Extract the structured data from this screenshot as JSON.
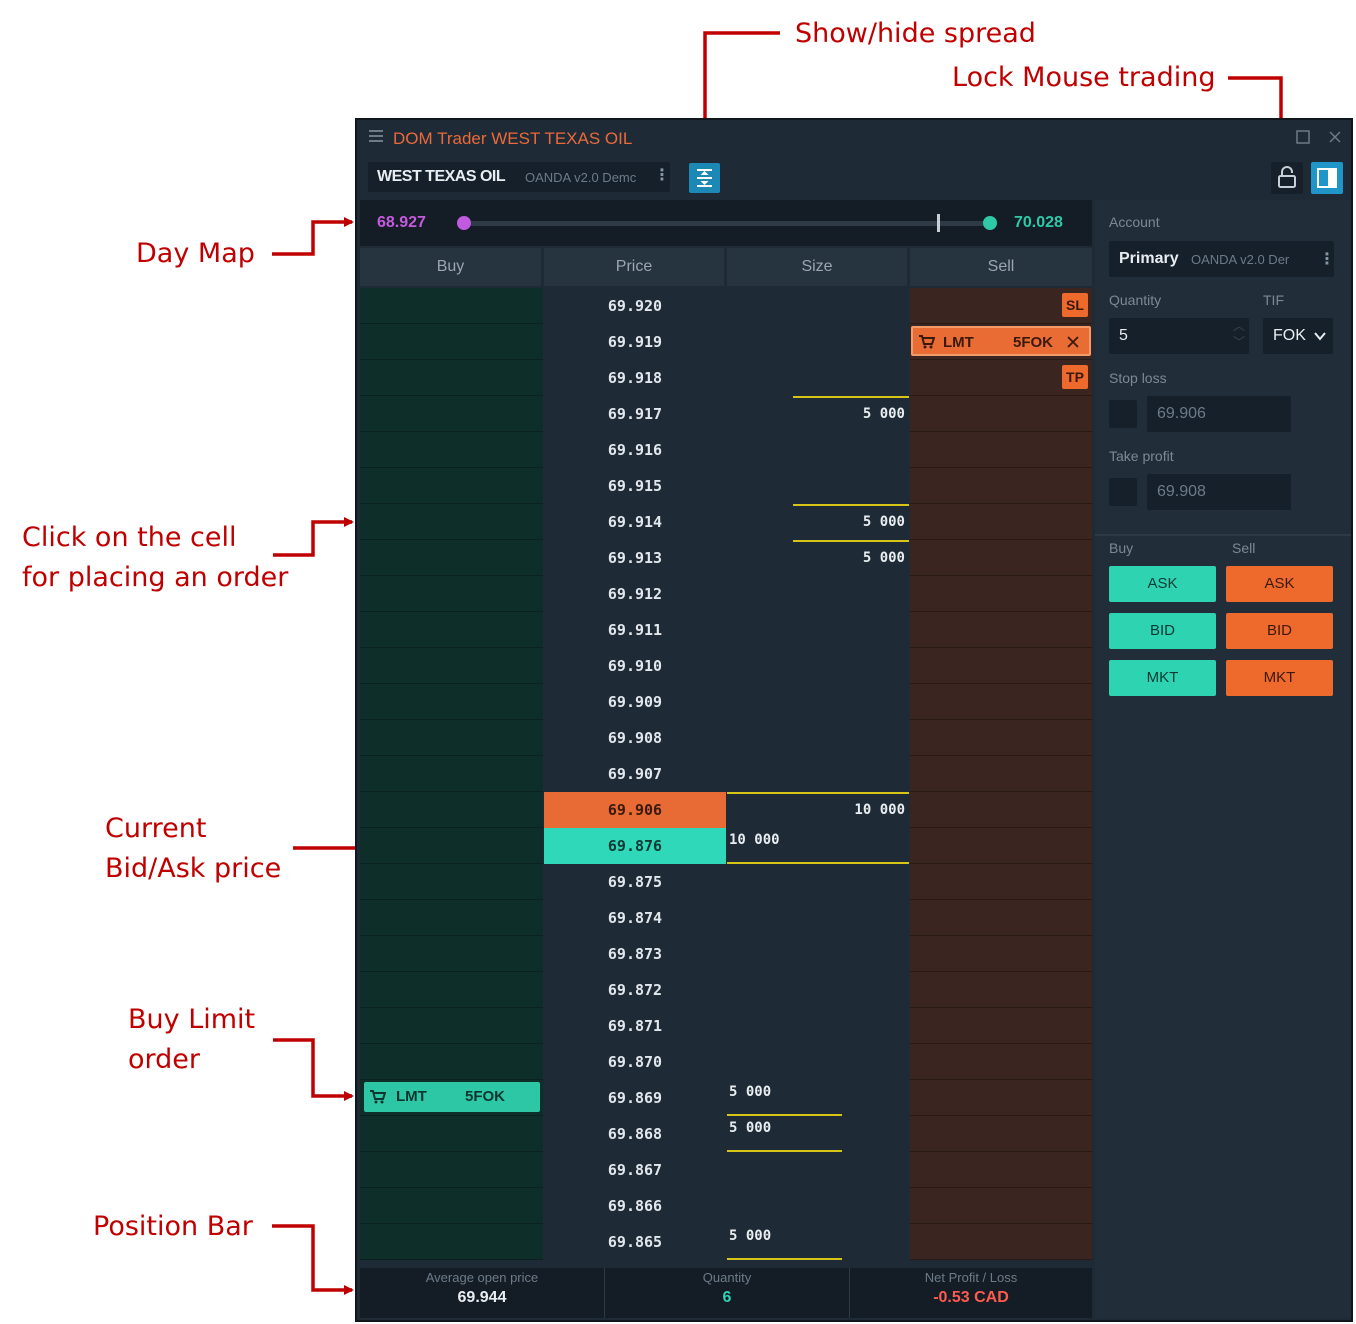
{
  "annotations": {
    "show_hide_spread": "Show/hide spread",
    "lock_mouse": "Lock Mouse trading",
    "day_map": "Day Map",
    "click_cell_1": "Click on the cell",
    "click_cell_2": "for placing an order",
    "current_price_1": "Current",
    "current_price_2": "Bid/Ask price",
    "buy_limit_1": "Buy Limit",
    "buy_limit_2": "order",
    "position_bar": "Position Bar"
  },
  "window": {
    "title": "DOM Trader WEST TEXAS OIL",
    "symbol": "WEST TEXAS OIL",
    "connection": "OANDA v2.0 Demc",
    "accent": "#ea6a3b"
  },
  "day_map": {
    "low": "68.927",
    "high": "70.028",
    "low_color": "#c05be0",
    "high_color": "#2ec9a6"
  },
  "columns": [
    "Buy",
    "Price",
    "Size",
    "Sell"
  ],
  "prices": [
    "69.920",
    "69.919",
    "69.918",
    "69.917",
    "69.916",
    "69.915",
    "69.914",
    "69.913",
    "69.912",
    "69.911",
    "69.910",
    "69.909",
    "69.908",
    "69.907",
    "69.906",
    "69.876",
    "69.875",
    "69.874",
    "69.873",
    "69.872",
    "69.871",
    "69.870",
    "69.869",
    "69.868",
    "69.867",
    "69.866",
    "69.865"
  ],
  "best_ask": "69.906",
  "best_bid": "69.876",
  "sizes": {
    "r3": "5 000",
    "r6": "5 000",
    "r7": "5 000",
    "ask": "10 000",
    "bid": "10 000",
    "r22": "5 000",
    "r23": "5 000",
    "r26": "5 000"
  },
  "sell_tags": {
    "sl": "SL",
    "tp": "TP"
  },
  "sell_order": {
    "type": "LMT",
    "qty": "5FOK",
    "price": "69.919"
  },
  "buy_order": {
    "type": "LMT",
    "qty": "5FOK",
    "price": "69.869"
  },
  "position": {
    "avg_label": "Average open price",
    "avg_value": "69.944",
    "qty_label": "Quantity",
    "qty_value": "6",
    "pnl_label": "Net Profit / Loss",
    "pnl_value": "-0.53 CAD"
  },
  "panel": {
    "account_label": "Account",
    "account_name": "Primary",
    "account_conn": "OANDA v2.0 Der",
    "quantity_label": "Quantity",
    "quantity_value": "5",
    "tif_label": "TIF",
    "tif_value": "FOK",
    "stop_loss_label": "Stop loss",
    "stop_loss_value": "69.906",
    "take_profit_label": "Take profit",
    "take_profit_value": "69.908",
    "buy_label": "Buy",
    "sell_label": "Sell",
    "buttons": [
      "ASK",
      "BID",
      "MKT"
    ]
  }
}
